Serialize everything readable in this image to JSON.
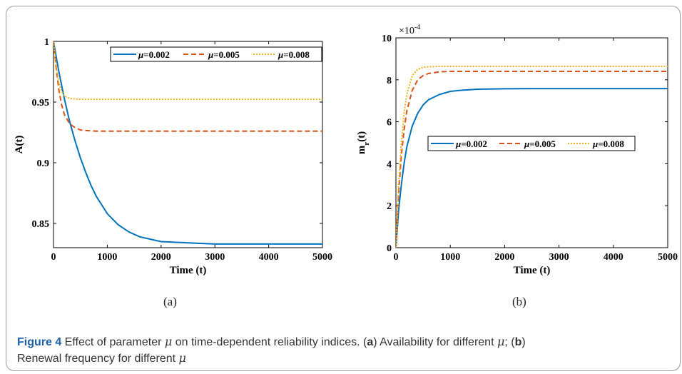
{
  "chart_data": [
    {
      "panel": "a",
      "type": "line",
      "xlabel": "Time (t)",
      "ylabel": "A(t)",
      "xlim": [
        0,
        5000
      ],
      "ylim": [
        0.83,
        1
      ],
      "xticks": [
        "0",
        "1000",
        "2000",
        "3000",
        "4000",
        "5000"
      ],
      "yticks": [
        "0.85",
        "0.9",
        "0.95",
        "1"
      ],
      "legend_position": "top-right",
      "series": [
        {
          "name": "μ=0.002",
          "color": "#0072BD",
          "style": "solid",
          "x": [
            0,
            100,
            200,
            300,
            400,
            500,
            600,
            700,
            800,
            900,
            1000,
            1200,
            1400,
            1600,
            1800,
            2000,
            2500,
            3000,
            3500,
            4000,
            4500,
            5000
          ],
          "y": [
            1.0,
            0.975,
            0.953,
            0.934,
            0.918,
            0.904,
            0.892,
            0.881,
            0.872,
            0.865,
            0.858,
            0.849,
            0.843,
            0.839,
            0.837,
            0.835,
            0.834,
            0.833,
            0.833,
            0.833,
            0.833,
            0.833
          ]
        },
        {
          "name": "μ=0.005",
          "color": "#D95319",
          "style": "dashed",
          "x": [
            0,
            50,
            100,
            150,
            200,
            300,
            400,
            500,
            600,
            800,
            1000,
            1500,
            2000,
            3000,
            4000,
            5000
          ],
          "y": [
            1.0,
            0.978,
            0.96,
            0.948,
            0.94,
            0.932,
            0.929,
            0.927,
            0.9265,
            0.926,
            0.926,
            0.926,
            0.926,
            0.926,
            0.926,
            0.926
          ]
        },
        {
          "name": "μ=0.008",
          "color": "#EDB120",
          "style": "dotted",
          "x": [
            0,
            50,
            100,
            150,
            200,
            300,
            400,
            500,
            700,
            1000,
            2000,
            3000,
            4000,
            5000
          ],
          "y": [
            1.0,
            0.979,
            0.966,
            0.959,
            0.955,
            0.953,
            0.9525,
            0.9523,
            0.9523,
            0.9523,
            0.9523,
            0.9523,
            0.9523,
            0.9523
          ]
        }
      ]
    },
    {
      "panel": "b",
      "type": "line",
      "xlabel": "Time (t)",
      "ylabel": "m_r(t)",
      "ylabel_main": "m",
      "ylabel_sub": "r",
      "ylabel_tail": "(t)",
      "exponent_label": "×10",
      "exponent_power": "-4",
      "xlim": [
        0,
        5000
      ],
      "ylim": [
        0,
        10
      ],
      "xticks": [
        "0",
        "1000",
        "2000",
        "3000",
        "4000",
        "5000"
      ],
      "yticks": [
        "0",
        "2",
        "4",
        "6",
        "8",
        "10"
      ],
      "legend_position": "center",
      "series": [
        {
          "name": "μ=0.002",
          "color": "#0072BD",
          "style": "solid",
          "x": [
            0,
            50,
            100,
            150,
            200,
            300,
            400,
            500,
            600,
            800,
            1000,
            1200,
            1500,
            2000,
            2500,
            3000,
            4000,
            5000
          ],
          "y": [
            0,
            1.8,
            3.0,
            4.0,
            4.8,
            5.8,
            6.4,
            6.8,
            7.05,
            7.3,
            7.45,
            7.5,
            7.55,
            7.57,
            7.58,
            7.58,
            7.58,
            7.58
          ]
        },
        {
          "name": "μ=0.005",
          "color": "#D95319",
          "style": "dashed",
          "x": [
            0,
            50,
            100,
            150,
            200,
            300,
            400,
            500,
            600,
            800,
            1000,
            1500,
            2000,
            3000,
            4000,
            5000
          ],
          "y": [
            0,
            2.6,
            4.4,
            5.6,
            6.5,
            7.5,
            8.0,
            8.2,
            8.3,
            8.38,
            8.4,
            8.4,
            8.4,
            8.4,
            8.4,
            8.4
          ]
        },
        {
          "name": "μ=0.008",
          "color": "#EDB120",
          "style": "dotted",
          "x": [
            0,
            50,
            100,
            150,
            200,
            300,
            400,
            500,
            600,
            800,
            1000,
            2000,
            3000,
            4000,
            5000
          ],
          "y": [
            0,
            3.0,
            5.0,
            6.4,
            7.3,
            8.2,
            8.5,
            8.6,
            8.62,
            8.64,
            8.64,
            8.64,
            8.64,
            8.64,
            8.64
          ]
        }
      ]
    }
  ],
  "subfigure_labels": [
    "(a)",
    "(b)"
  ],
  "caption": {
    "figure_label": "Figure 4",
    "text1": "  Effect of parameter ",
    "symbol": "μ",
    "text2": " on time-dependent reliability indices. (",
    "a_letter": "a",
    "text3": ") Availability for different ",
    "text4": "; (",
    "b_letter": "b",
    "text5": ")",
    "line2": "Renewal frequency for different "
  }
}
